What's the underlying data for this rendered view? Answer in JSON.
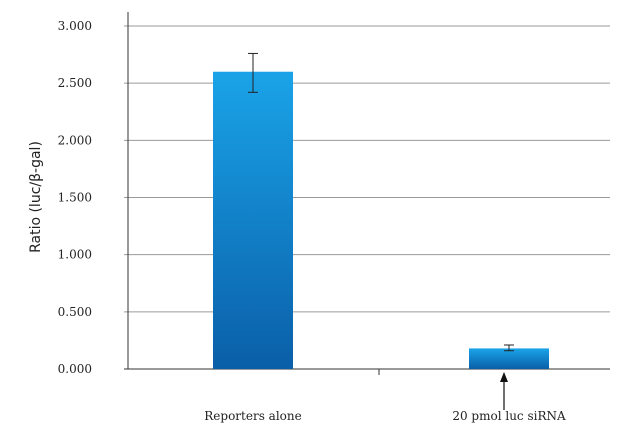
{
  "chart_data": {
    "type": "bar",
    "title": "",
    "xlabel": "",
    "ylabel": "Ratio (luc/β-gal)",
    "categories": [
      "Reporters alone",
      "20 pmol luc siRNA"
    ],
    "values": [
      2.6,
      0.18
    ],
    "error_low": [
      2.42,
      0.16
    ],
    "error_high": [
      2.76,
      0.21
    ],
    "ylim": [
      0,
      3
    ],
    "yticks": [
      0,
      0.5,
      1,
      1.5,
      2,
      2.5,
      3
    ],
    "ytick_labels": [
      "0.000",
      "0.500",
      "1.000",
      "1.500",
      "2.000",
      "2.500",
      "3.000"
    ],
    "grid": true,
    "bar_color_top": "#1aa3e8",
    "bar_color_bottom": "#0a5fa8",
    "annotation": {
      "type": "arrow",
      "target_category": "20 pmol luc siRNA"
    }
  }
}
